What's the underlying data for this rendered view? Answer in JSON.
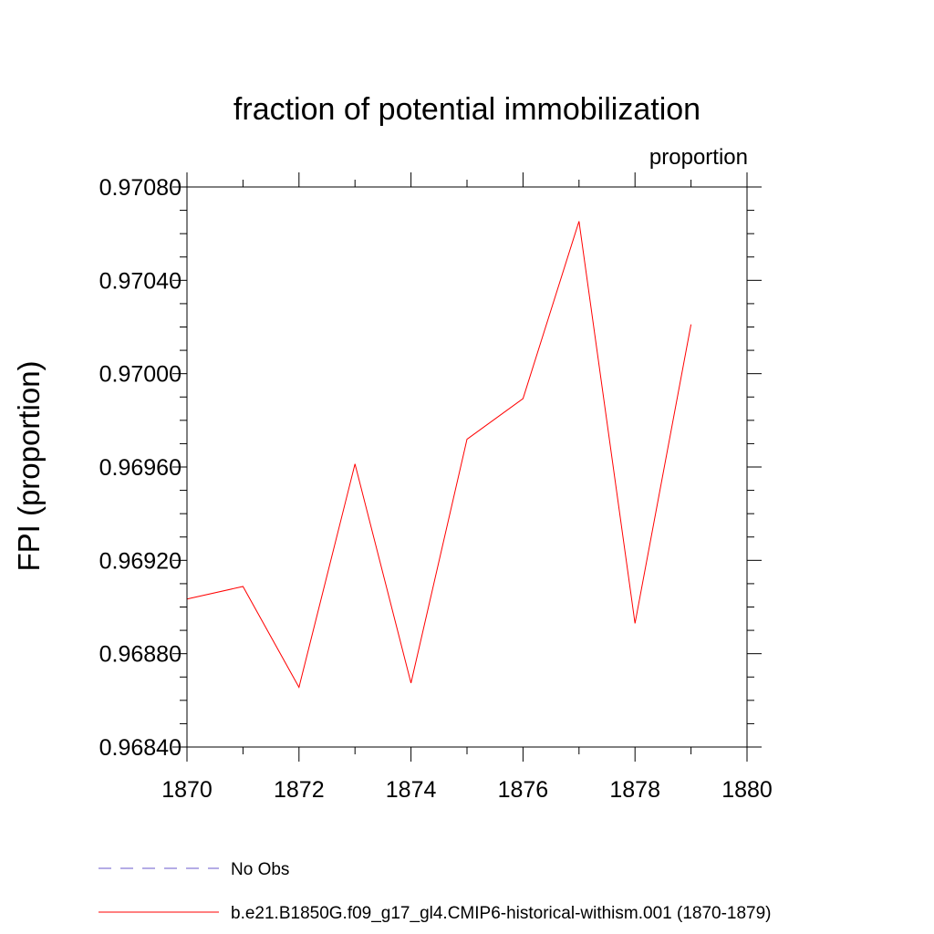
{
  "chart_data": {
    "type": "line",
    "title": "fraction of potential immobilization",
    "units_label": "proportion",
    "xlabel": "",
    "ylabel": "FPI  (proportion)",
    "xlim": [
      1870,
      1880
    ],
    "ylim": [
      0.9684,
      0.9708
    ],
    "x_ticks": [
      1870,
      1872,
      1874,
      1876,
      1878,
      1880
    ],
    "x_tick_labels": [
      "1870",
      "1872",
      "1874",
      "1876",
      "1878",
      "1880"
    ],
    "y_ticks": [
      0.9684,
      0.9688,
      0.9692,
      0.9696,
      0.97,
      0.9704,
      0.9708
    ],
    "y_tick_labels": [
      "0.96840",
      "0.96880",
      "0.96920",
      "0.96960",
      "0.97000",
      "0.97040",
      "0.97080"
    ],
    "x_minor_step": 1,
    "y_minor_step": 0.0001,
    "grid": false,
    "legend_position": "bottom",
    "series": [
      {
        "name": "No Obs",
        "color": "#6a5acd",
        "dash": "dashed",
        "x": [],
        "y": []
      },
      {
        "name": "b.e21.B1850G.f09_g17_gl4.CMIP6-historical-withism.001 (1870-1879)",
        "color": "#ff0000",
        "dash": "solid",
        "x": [
          1870,
          1871,
          1872,
          1873,
          1874,
          1875,
          1876,
          1877,
          1878,
          1879
        ],
        "y": [
          0.969034,
          0.969088,
          0.968656,
          0.969613,
          0.968674,
          0.969719,
          0.969893,
          0.970653,
          0.96893,
          0.970211
        ]
      }
    ]
  }
}
